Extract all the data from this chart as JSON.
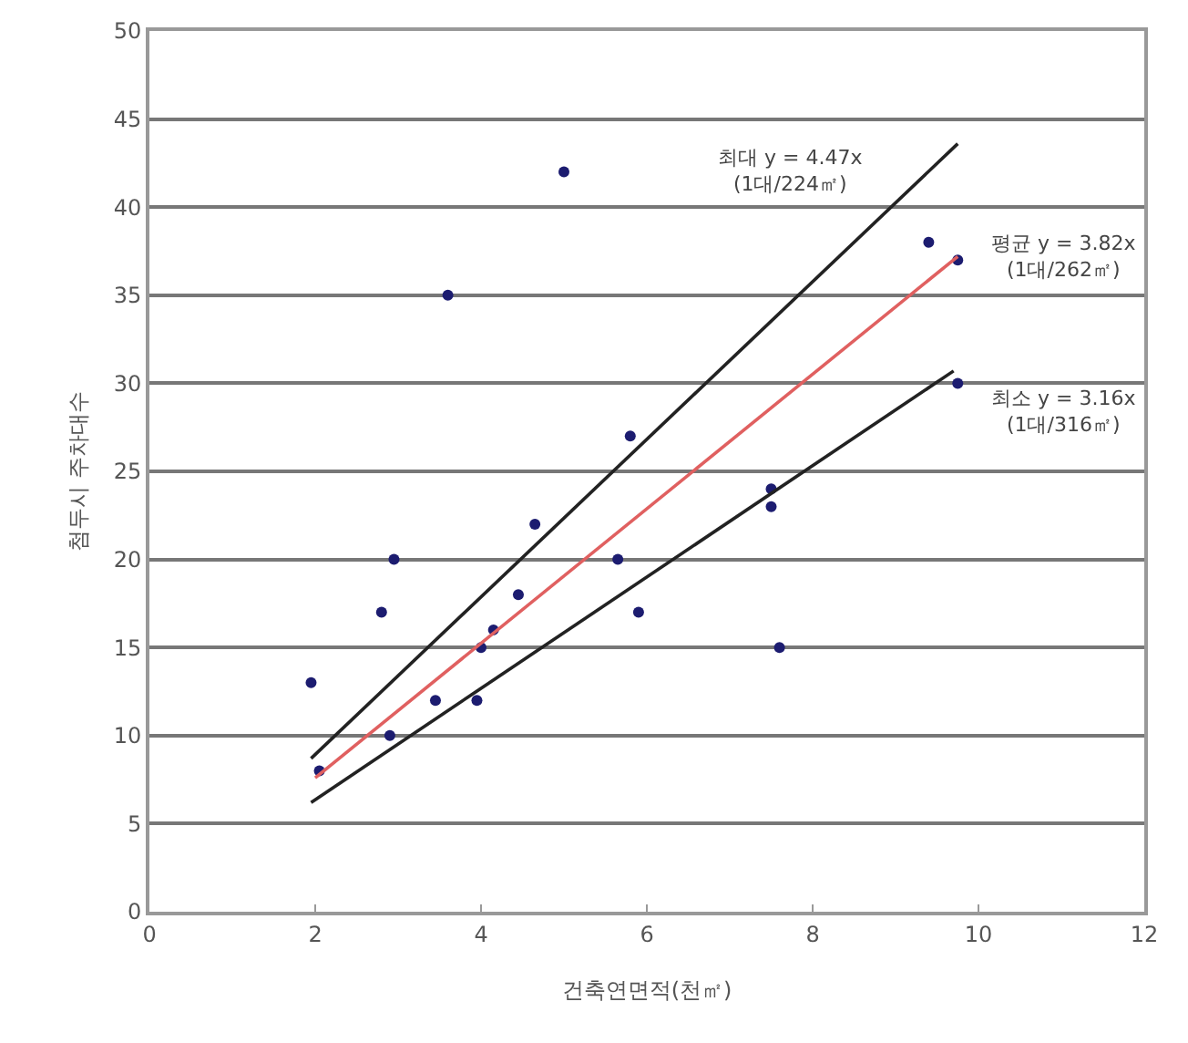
{
  "chart_data": {
    "type": "scatter",
    "xlabel": "건축연면적(천㎡)",
    "ylabel": "첨두시 주차대수",
    "xlim": [
      0,
      12
    ],
    "xticks": [
      0,
      2,
      4,
      6,
      8,
      10,
      12
    ],
    "ylim": [
      0,
      50
    ],
    "yticks": [
      0,
      5,
      10,
      15,
      20,
      25,
      30,
      35,
      40,
      45,
      50
    ],
    "grid": "y",
    "series": [
      {
        "color": "#1c1c70",
        "marker": "circle",
        "x": [
          1.95,
          2.05,
          2.8,
          2.95,
          2.9,
          3.45,
          3.6,
          3.95,
          4.0,
          4.15,
          4.45,
          4.65,
          5.0,
          5.65,
          5.8,
          5.9,
          7.5,
          7.5,
          7.6,
          9.4,
          9.75,
          9.75
        ],
        "values": [
          13,
          8,
          17,
          20,
          10,
          12,
          35,
          12,
          15,
          16,
          18,
          22,
          42,
          20,
          27,
          17,
          24,
          23,
          15,
          38,
          37,
          30
        ]
      },
      {
        "type": "line",
        "color": "#222222",
        "x": [
          1.95,
          9.75
        ],
        "values": [
          8.7,
          43.6
        ]
      },
      {
        "type": "line",
        "color": "#e06060",
        "x": [
          2.0,
          9.75
        ],
        "values": [
          7.6,
          37.2
        ]
      },
      {
        "type": "line",
        "color": "#222222",
        "x": [
          1.95,
          9.7
        ],
        "values": [
          6.2,
          30.7
        ]
      }
    ],
    "annotations": [
      "최대 y = 4.47x\n(1대/224㎡)",
      "평균 y = 3.82x\n(1대/262㎡)",
      "최소 y = 3.16x\n(1대/316㎡)"
    ]
  }
}
